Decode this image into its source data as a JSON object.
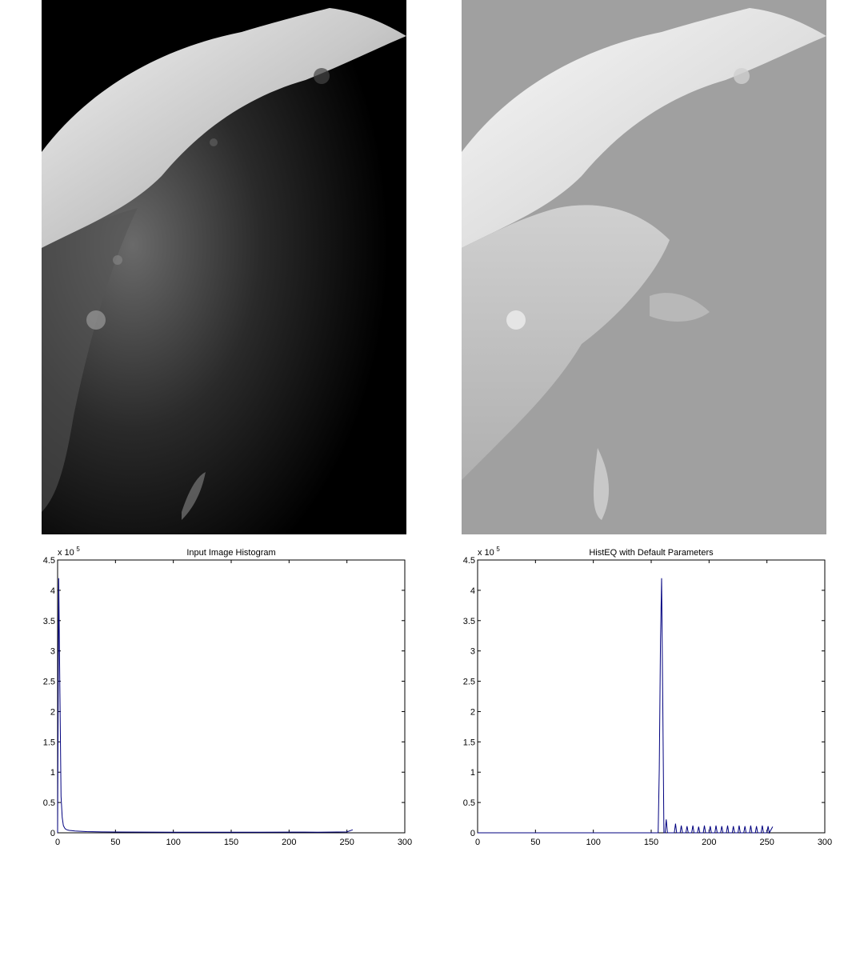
{
  "figure": {
    "left_image_alt": "Input grayscale image of a cratered moon surface on black background",
    "right_image_alt": "Histogram-equalized image of the same moon surface on gray background"
  },
  "chart_data": [
    {
      "type": "line",
      "title": "Input Image Histogram",
      "xlabel": "",
      "ylabel": "",
      "exponent_label": "x 10",
      "exponent_power": "5",
      "xlim": [
        0,
        300
      ],
      "ylim": [
        0,
        450000
      ],
      "xticks": [
        0,
        50,
        100,
        150,
        200,
        250,
        300
      ],
      "yticks": [
        0,
        50000,
        100000,
        150000,
        200000,
        250000,
        300000,
        350000,
        400000,
        450000
      ],
      "ytick_labels": [
        "0",
        "0.5",
        "1",
        "1.5",
        "2",
        "2.5",
        "3",
        "3.5",
        "4",
        "4.5"
      ],
      "line_color": "#00007f",
      "series": [
        {
          "x": [
            0,
            1,
            2,
            3,
            4,
            5,
            6,
            7,
            8,
            10,
            12,
            15,
            20,
            25,
            30,
            40,
            50,
            75,
            100,
            125,
            150,
            175,
            200,
            225,
            250,
            255
          ],
          "y": [
            0,
            420000,
            230000,
            60000,
            25000,
            12000,
            8000,
            6000,
            5000,
            4000,
            3500,
            3000,
            2500,
            2000,
            1800,
            1500,
            1300,
            1200,
            1100,
            1000,
            1000,
            1000,
            1200,
            1000,
            1500,
            5000
          ]
        }
      ]
    },
    {
      "type": "line",
      "title": "HistEQ with Default Parameters",
      "xlabel": "",
      "ylabel": "",
      "exponent_label": "x 10",
      "exponent_power": "5",
      "xlim": [
        0,
        300
      ],
      "ylim": [
        0,
        450000
      ],
      "xticks": [
        0,
        50,
        100,
        150,
        200,
        250,
        300
      ],
      "yticks": [
        0,
        50000,
        100000,
        150000,
        200000,
        250000,
        300000,
        350000,
        400000,
        450000
      ],
      "ytick_labels": [
        "0",
        "0.5",
        "1",
        "1.5",
        "2",
        "2.5",
        "3",
        "3.5",
        "4",
        "4.5"
      ],
      "line_color": "#00007f",
      "series": [
        {
          "x": [
            0,
            156,
            157,
            158,
            159,
            160,
            161,
            162,
            163,
            164,
            165,
            170,
            171,
            172,
            175,
            176,
            177,
            180,
            181,
            182,
            185,
            186,
            187,
            190,
            191,
            192,
            195,
            196,
            197,
            200,
            201,
            202,
            205,
            206,
            207,
            210,
            211,
            212,
            215,
            216,
            217,
            220,
            221,
            222,
            225,
            226,
            227,
            230,
            231,
            232,
            235,
            236,
            237,
            240,
            241,
            242,
            245,
            246,
            247,
            250,
            251,
            252,
            255
          ],
          "y": [
            0,
            0,
            105000,
            315000,
            420000,
            210000,
            0,
            0,
            22000,
            0,
            0,
            0,
            15000,
            0,
            0,
            12000,
            0,
            0,
            11000,
            0,
            0,
            12000,
            0,
            0,
            10000,
            0,
            0,
            12000,
            0,
            0,
            11000,
            0,
            0,
            12000,
            0,
            0,
            11000,
            0,
            0,
            12000,
            0,
            0,
            11000,
            0,
            0,
            12000,
            0,
            0,
            11000,
            0,
            0,
            12000,
            0,
            0,
            11000,
            0,
            0,
            12000,
            0,
            0,
            11000,
            0,
            10000
          ]
        }
      ]
    }
  ]
}
